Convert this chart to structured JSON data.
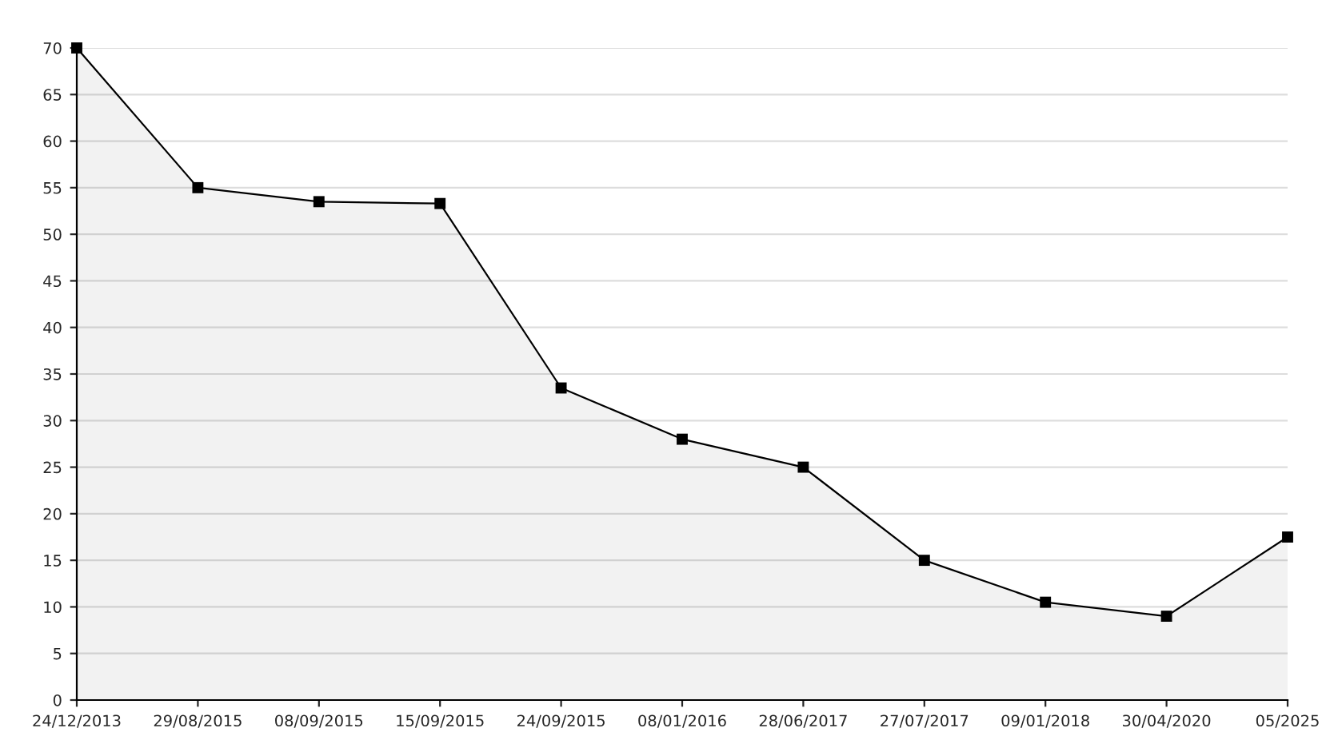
{
  "chart_data": {
    "type": "area",
    "categories": [
      "24/12/2013",
      "29/08/2015",
      "08/09/2015",
      "15/09/2015",
      "24/09/2015",
      "08/01/2016",
      "28/06/2017",
      "27/07/2017",
      "09/01/2018",
      "30/04/2020",
      "05/2025"
    ],
    "series": [
      {
        "color": "#000000",
        "values": [
          70,
          55,
          53.5,
          53.3,
          33.5,
          28,
          25,
          15,
          10.5,
          9,
          17.5
        ]
      }
    ],
    "ylim": [
      0,
      70
    ],
    "yticks": [
      0,
      5,
      10,
      15,
      20,
      25,
      30,
      35,
      40,
      45,
      50,
      55,
      60,
      65,
      70
    ],
    "grid": "y",
    "marker": "square",
    "line_style": "solid"
  }
}
